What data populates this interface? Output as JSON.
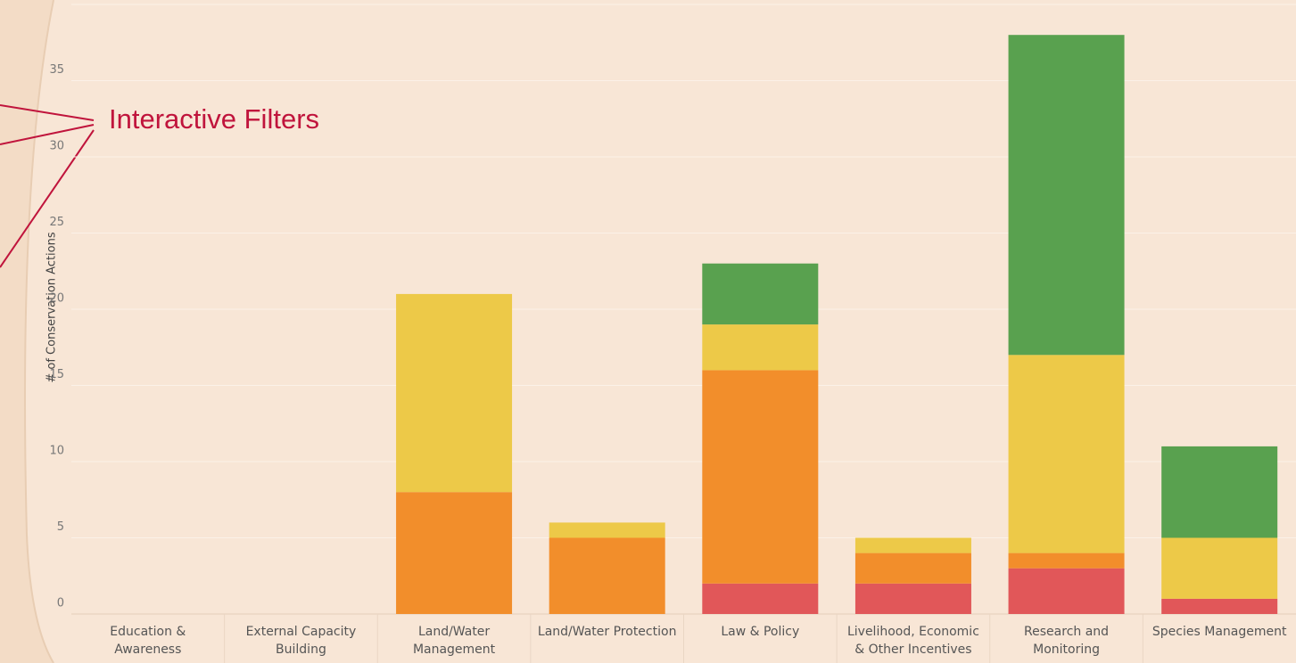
{
  "chart_data": {
    "type": "stacked_bar",
    "y_label": "# of Conservation Actions",
    "annotation": "Interactive Filters",
    "categories": [
      "Education & Awareness",
      "External Capacity Building",
      "Land/Water Management",
      "Land/Water Protection",
      "Law & Policy",
      "Livelihood, Economic & Other Incentives",
      "Research and Monitoring",
      "Species Management"
    ],
    "series": [
      {
        "color": "#e15759",
        "values": [
          0,
          0,
          0,
          0,
          2,
          2,
          3,
          1
        ]
      },
      {
        "color": "#f28e2b",
        "values": [
          0,
          0,
          8,
          5,
          14,
          2,
          1,
          0
        ]
      },
      {
        "color": "#edc948",
        "values": [
          0,
          0,
          13,
          1,
          3,
          1,
          13,
          4
        ]
      },
      {
        "color": "#59a14f",
        "values": [
          0,
          0,
          0,
          0,
          4,
          0,
          21,
          6
        ]
      }
    ],
    "ylim": [
      0,
      40
    ],
    "yticks": [
      0,
      5,
      10,
      15,
      20,
      25,
      30,
      35,
      40
    ],
    "grid": true
  }
}
